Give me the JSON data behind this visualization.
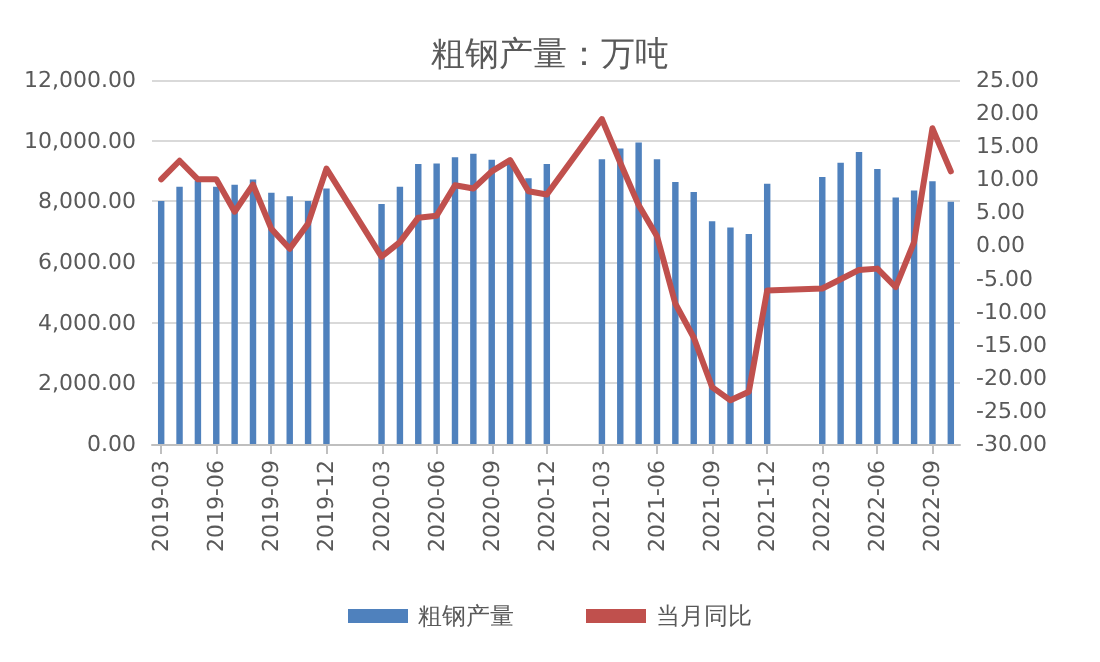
{
  "chart_data": {
    "type": "bar",
    "title": "粗钢产量：万吨",
    "categories": [
      "2019-03",
      null,
      null,
      "2019-06",
      null,
      null,
      "2019-09",
      null,
      null,
      "2019-12",
      null,
      null,
      "2020-03",
      null,
      null,
      "2020-06",
      null,
      null,
      "2020-09",
      null,
      null,
      "2020-12",
      null,
      null,
      "2021-03",
      null,
      null,
      "2021-06",
      null,
      null,
      "2021-09",
      null,
      null,
      "2021-12",
      null,
      null,
      "2022-03",
      null,
      null,
      "2022-06",
      null,
      null,
      "2022-09",
      null
    ],
    "series": [
      {
        "name": "粗钢产量",
        "color": "#4f81bd",
        "values": [
          8010,
          8480,
          8680,
          8480,
          8550,
          8720,
          8280,
          8170,
          8010,
          8420,
          null,
          null,
          7910,
          8480,
          9230,
          9250,
          9450,
          9570,
          9370,
          9300,
          8760,
          9230,
          null,
          null,
          9390,
          9740,
          9940,
          9390,
          8640,
          8310,
          7340,
          7140,
          6920,
          8580,
          null,
          null,
          8800,
          9270,
          9630,
          9070,
          8130,
          8360,
          8660,
          7990
        ]
      },
      {
        "name": "当月同比",
        "type": "line",
        "axis": "y2",
        "color": "#c0504d",
        "values": [
          10.0,
          12.8,
          10.0,
          10.0,
          5.1,
          9.2,
          2.5,
          -0.5,
          3.3,
          11.6,
          null,
          null,
          -1.7,
          0.5,
          4.2,
          4.5,
          9.1,
          8.6,
          11.2,
          12.9,
          8.2,
          7.7,
          null,
          null,
          19.1,
          12.5,
          6.1,
          1.4,
          -8.8,
          -13.9,
          -21.4,
          -23.4,
          -22.1,
          -6.8,
          null,
          null,
          -6.5,
          -5.1,
          -3.7,
          -3.5,
          -6.3,
          0.5,
          17.7,
          11.2
        ]
      }
    ],
    "ylim": [
      0,
      12000
    ],
    "yticks": [
      {
        "value": 0,
        "label": "0.00"
      },
      {
        "value": 2000,
        "label": "2,000.00"
      },
      {
        "value": 4000,
        "label": "4,000.00"
      },
      {
        "value": 6000,
        "label": "6,000.00"
      },
      {
        "value": 8000,
        "label": "8,000.00"
      },
      {
        "value": 10000,
        "label": "10,000.00"
      },
      {
        "value": 12000,
        "label": "12,000.00"
      }
    ],
    "y2lim": [
      -30,
      25
    ],
    "y2ticks": [
      {
        "value": -30,
        "label": "-30.00"
      },
      {
        "value": -25,
        "label": "-25.00"
      },
      {
        "value": -20,
        "label": "-20.00"
      },
      {
        "value": -15,
        "label": "-15.00"
      },
      {
        "value": -10,
        "label": "-10.00"
      },
      {
        "value": -5,
        "label": "-5.00"
      },
      {
        "value": 0,
        "label": "0.00"
      },
      {
        "value": 5,
        "label": "5.00"
      },
      {
        "value": 10,
        "label": "10.00"
      },
      {
        "value": 15,
        "label": "15.00"
      },
      {
        "value": 20,
        "label": "20.00"
      },
      {
        "value": 25,
        "label": "25.00"
      }
    ],
    "grid": "y",
    "legend": "bottom",
    "marker": "none"
  }
}
